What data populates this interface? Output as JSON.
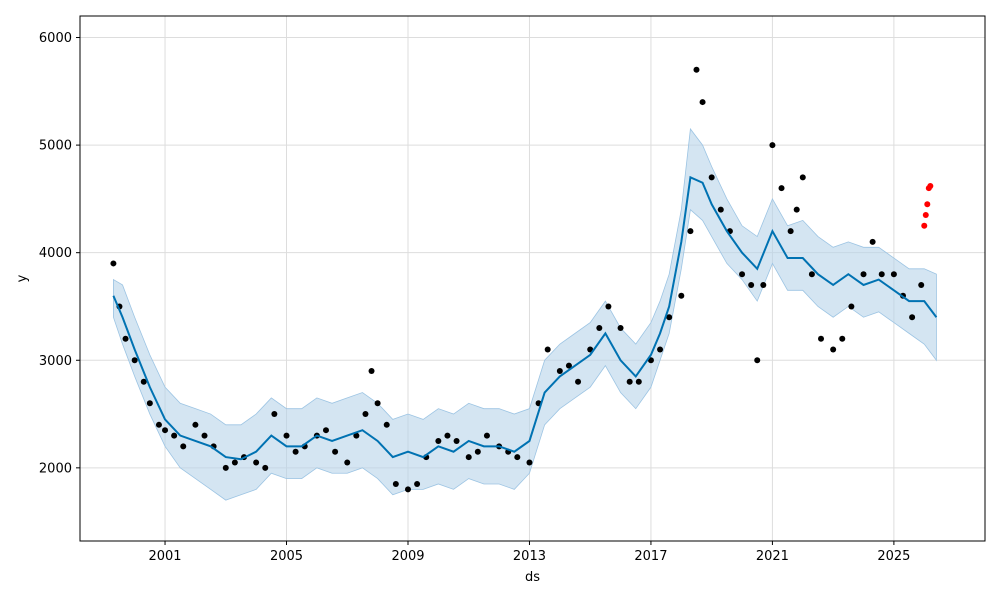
{
  "chart_data": {
    "type": "line",
    "title": "",
    "xlabel": "ds",
    "ylabel": "y",
    "xlim": [
      1998.2,
      2028.0
    ],
    "ylim": [
      1320,
      6200
    ],
    "x_ticks": [
      2001,
      2005,
      2009,
      2013,
      2017,
      2021,
      2025
    ],
    "x_tick_labels": [
      "2001",
      "2005",
      "2009",
      "2013",
      "2017",
      "2021",
      "2025"
    ],
    "y_ticks": [
      2000,
      3000,
      4000,
      5000,
      6000
    ],
    "y_tick_labels": [
      "2000",
      "3000",
      "4000",
      "5000",
      "6000"
    ],
    "grid": true,
    "legend": "none",
    "colors": {
      "forecast_line": "#0072b2",
      "interval_fill": "#b7d4ea",
      "observed_points": "#000000",
      "recent_points": "#ff0000"
    },
    "forecast": {
      "x": [
        1999.3,
        1999.6,
        2000.0,
        2000.5,
        2001.0,
        2001.5,
        2002.0,
        2002.5,
        2003.0,
        2003.5,
        2004.0,
        2004.5,
        2005.0,
        2005.5,
        2006.0,
        2006.5,
        2007.0,
        2007.5,
        2008.0,
        2008.5,
        2009.0,
        2009.5,
        2010.0,
        2010.5,
        2011.0,
        2011.5,
        2012.0,
        2012.5,
        2013.0,
        2013.5,
        2014.0,
        2014.5,
        2015.0,
        2015.5,
        2016.0,
        2016.5,
        2017.0,
        2017.3,
        2017.6,
        2018.0,
        2018.3,
        2018.7,
        2019.0,
        2019.5,
        2020.0,
        2020.5,
        2021.0,
        2021.5,
        2022.0,
        2022.5,
        2023.0,
        2023.5,
        2024.0,
        2024.5,
        2025.0,
        2025.5,
        2026.0,
        2026.4
      ],
      "yhat": [
        3600,
        3400,
        3100,
        2750,
        2450,
        2300,
        2250,
        2200,
        2100,
        2080,
        2150,
        2300,
        2200,
        2200,
        2300,
        2250,
        2300,
        2350,
        2250,
        2100,
        2150,
        2100,
        2200,
        2150,
        2250,
        2200,
        2200,
        2150,
        2250,
        2700,
        2850,
        2950,
        3050,
        3250,
        3000,
        2850,
        3050,
        3250,
        3500,
        4100,
        4700,
        4650,
        4450,
        4200,
        4000,
        3850,
        4200,
        3950,
        3950,
        3800,
        3700,
        3800,
        3700,
        3750,
        3650,
        3550,
        3550,
        3400
      ],
      "lower": [
        3400,
        3150,
        2850,
        2500,
        2200,
        2000,
        1900,
        1800,
        1700,
        1750,
        1800,
        1950,
        1900,
        1900,
        2000,
        1950,
        1950,
        2000,
        1900,
        1750,
        1800,
        1800,
        1850,
        1800,
        1900,
        1850,
        1850,
        1800,
        1950,
        2400,
        2550,
        2650,
        2750,
        2950,
        2700,
        2550,
        2750,
        3000,
        3250,
        3850,
        4400,
        4300,
        4150,
        3900,
        3750,
        3550,
        3900,
        3650,
        3650,
        3500,
        3400,
        3500,
        3400,
        3450,
        3350,
        3250,
        3150,
        3000
      ],
      "upper": [
        3750,
        3700,
        3400,
        3050,
        2750,
        2600,
        2550,
        2500,
        2400,
        2400,
        2500,
        2650,
        2550,
        2550,
        2650,
        2600,
        2650,
        2700,
        2600,
        2450,
        2500,
        2450,
        2550,
        2500,
        2600,
        2550,
        2550,
        2500,
        2550,
        3000,
        3150,
        3250,
        3350,
        3550,
        3300,
        3150,
        3350,
        3550,
        3800,
        4400,
        5150,
        5000,
        4800,
        4500,
        4250,
        4150,
        4500,
        4250,
        4300,
        4150,
        4050,
        4100,
        4050,
        4050,
        3950,
        3850,
        3850,
        3800
      ]
    },
    "observed": {
      "x": [
        1999.3,
        1999.5,
        1999.7,
        2000.0,
        2000.3,
        2000.5,
        2000.8,
        2001.0,
        2001.3,
        2001.6,
        2002.0,
        2002.3,
        2002.6,
        2003.0,
        2003.3,
        2003.6,
        2004.0,
        2004.3,
        2004.6,
        2005.0,
        2005.3,
        2005.6,
        2006.0,
        2006.3,
        2006.6,
        2007.0,
        2007.3,
        2007.6,
        2007.8,
        2008.0,
        2008.3,
        2008.6,
        2009.0,
        2009.3,
        2009.6,
        2010.0,
        2010.3,
        2010.6,
        2011.0,
        2011.3,
        2011.6,
        2012.0,
        2012.3,
        2012.6,
        2013.0,
        2013.3,
        2013.6,
        2014.0,
        2014.3,
        2014.6,
        2015.0,
        2015.3,
        2015.6,
        2016.0,
        2016.3,
        2016.6,
        2017.0,
        2017.3,
        2017.6,
        2018.0,
        2018.3,
        2018.5,
        2018.7,
        2019.0,
        2019.3,
        2019.6,
        2020.0,
        2020.3,
        2020.5,
        2020.7,
        2021.0,
        2021.3,
        2021.6,
        2021.8,
        2022.0,
        2022.3,
        2022.6,
        2023.0,
        2023.3,
        2023.6,
        2024.0,
        2024.3,
        2024.6,
        2025.0,
        2025.3,
        2025.6,
        2025.9
      ],
      "y": [
        3900,
        3500,
        3200,
        3000,
        2800,
        2600,
        2400,
        2350,
        2300,
        2200,
        2400,
        2300,
        2200,
        2000,
        2050,
        2100,
        2050,
        2000,
        2500,
        2300,
        2150,
        2200,
        2300,
        2350,
        2150,
        2050,
        2300,
        2500,
        2900,
        2600,
        2400,
        1850,
        1800,
        1850,
        2100,
        2250,
        2300,
        2250,
        2100,
        2150,
        2300,
        2200,
        2150,
        2100,
        2050,
        2600,
        3100,
        2900,
        2950,
        2800,
        3100,
        3300,
        3500,
        3300,
        2800,
        2800,
        3000,
        3100,
        3400,
        3600,
        4200,
        5700,
        5400,
        4700,
        4400,
        4200,
        3800,
        3700,
        3000,
        3700,
        5000,
        4600,
        4200,
        4400,
        4700,
        3800,
        3200,
        3100,
        3200,
        3500,
        3800,
        4100,
        3800,
        3800,
        3600,
        3400,
        3700
      ]
    },
    "recent": {
      "x": [
        2026.0,
        2026.05,
        2026.1,
        2026.15,
        2026.2
      ],
      "y": [
        4250,
        4350,
        4450,
        4600,
        4620
      ]
    }
  }
}
